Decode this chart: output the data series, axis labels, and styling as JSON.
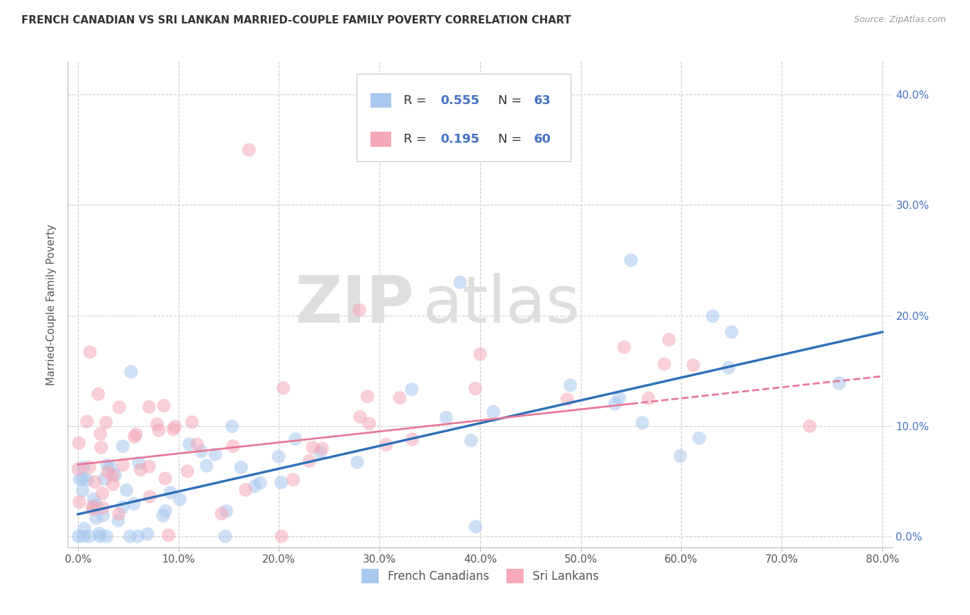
{
  "title": "FRENCH CANADIAN VS SRI LANKAN MARRIED-COUPLE FAMILY POVERTY CORRELATION CHART",
  "source": "Source: ZipAtlas.com",
  "ylabel_label": "Married-Couple Family Poverty",
  "xlim": [
    0,
    80
  ],
  "ylim": [
    0,
    42
  ],
  "ytick_vals": [
    0,
    10,
    20,
    30,
    40
  ],
  "xtick_vals": [
    0,
    10,
    20,
    30,
    40,
    50,
    60,
    70,
    80
  ],
  "watermark_zip": "ZIP",
  "watermark_atlas": "atlas",
  "legend_r1": "R = ",
  "legend_v1": "0.555",
  "legend_n1_label": "N = ",
  "legend_n1": "63",
  "legend_r2": "R = ",
  "legend_v2": "0.195",
  "legend_n2_label": "N = ",
  "legend_n2": "60",
  "color_blue": "#A8C8F0",
  "color_pink": "#F5A8B8",
  "color_blue_line": "#3070B8",
  "color_pink_line": "#E87898",
  "color_blue_text": "#4472C4",
  "grid_color": "#CCCCCC",
  "background_color": "#FFFFFF",
  "french_legend_label": "French Canadians",
  "sri_legend_label": "Sri Lankans",
  "fc_line_x0": 0,
  "fc_line_y0": 2.0,
  "fc_line_x1": 80,
  "fc_line_y1": 18.5,
  "sl_line_x0": 0,
  "sl_line_y0": 6.5,
  "sl_line_x1": 80,
  "sl_line_y1": 14.5,
  "sl_solid_end_x": 55
}
